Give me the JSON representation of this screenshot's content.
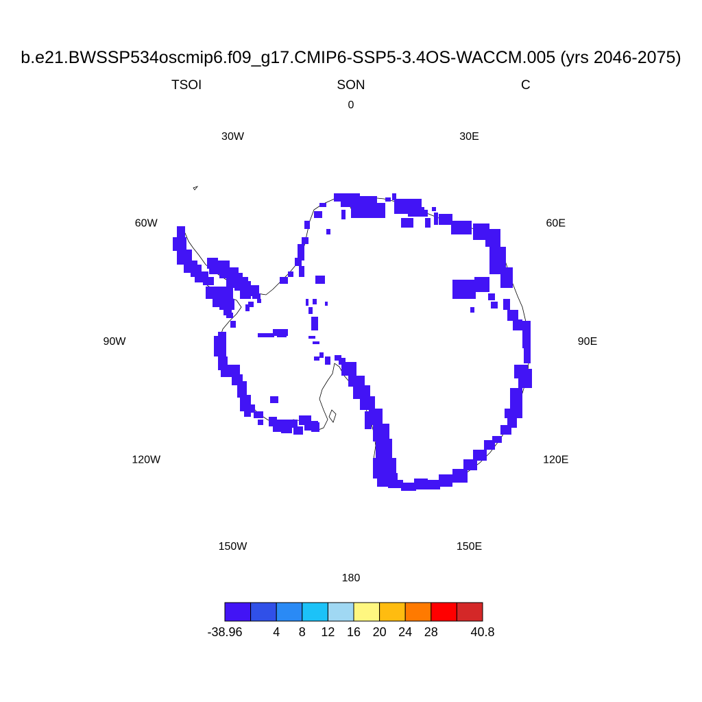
{
  "title": "b.e21.BWSSP534oscmip6.f09_g17.CMIP6-SSP5-3.4OS-WACCM.005 (yrs 2046-2075)",
  "subtitle_left": "TSOI",
  "subtitle_center": "SON",
  "subtitle_right": "C",
  "longitude_labels": [
    {
      "text": "0",
      "lon": 0
    },
    {
      "text": "30E",
      "lon": 30
    },
    {
      "text": "60E",
      "lon": 60
    },
    {
      "text": "90E",
      "lon": 90
    },
    {
      "text": "120E",
      "lon": 120
    },
    {
      "text": "150E",
      "lon": 150
    },
    {
      "text": "180",
      "lon": 180
    },
    {
      "text": "150W",
      "lon": -150
    },
    {
      "text": "120W",
      "lon": -120
    },
    {
      "text": "90W",
      "lon": -90
    },
    {
      "text": "60W",
      "lon": -60
    },
    {
      "text": "30W",
      "lon": -30
    }
  ],
  "colorbar": {
    "colors": [
      "#4214f5",
      "#3050e8",
      "#2a8af5",
      "#1cc2f8",
      "#a0d8f3",
      "#fff780",
      "#ffbc10",
      "#ff7a00",
      "#ff0000",
      "#d42828"
    ],
    "labels": [
      "-38.96",
      "4",
      "8",
      "12",
      "16",
      "20",
      "24",
      "28",
      "40.8"
    ],
    "label_boundaries": [
      0,
      2,
      3,
      4,
      5,
      6,
      7,
      8,
      10
    ]
  },
  "data_color": "#4214f5",
  "icons": {
    "map": "antarctica-polar-map"
  }
}
